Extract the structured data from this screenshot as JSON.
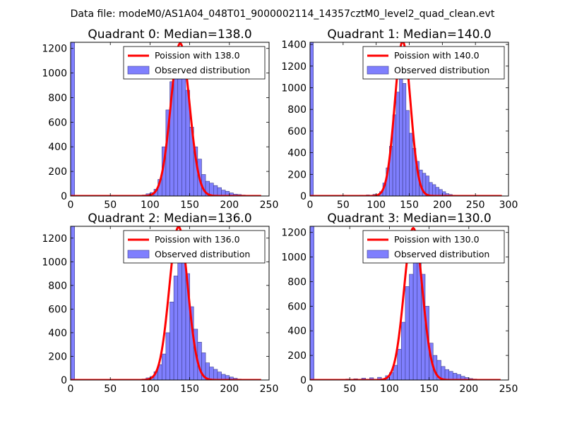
{
  "suptitle": "Data file: modeM0/AS1A04_048T01_9000002114_14357cztM0_level2_quad_clean.evt",
  "colors": {
    "bar": "#7f7ffe",
    "bar_edge": "#3d3d8a",
    "poisson": "#ff0000"
  },
  "chart_data": [
    {
      "type": "bar",
      "title": "Quadrant 0: Median=138.0",
      "median": 138,
      "xlim": [
        0,
        250
      ],
      "ylim": [
        0,
        1250
      ],
      "xticks": [
        0,
        50,
        100,
        150,
        200,
        250
      ],
      "yticks": [
        0,
        200,
        400,
        600,
        800,
        1000,
        1200
      ],
      "bin_width": 5,
      "bins": [
        [
          0,
          1250
        ],
        [
          90,
          8
        ],
        [
          95,
          18
        ],
        [
          100,
          28
        ],
        [
          105,
          55
        ],
        [
          110,
          135
        ],
        [
          115,
          400
        ],
        [
          120,
          700
        ],
        [
          125,
          930
        ],
        [
          130,
          990
        ],
        [
          135,
          1035
        ],
        [
          140,
          1010
        ],
        [
          145,
          860
        ],
        [
          150,
          560
        ],
        [
          155,
          400
        ],
        [
          160,
          300
        ],
        [
          165,
          175
        ],
        [
          170,
          120
        ],
        [
          175,
          105
        ],
        [
          180,
          85
        ],
        [
          185,
          68
        ],
        [
          190,
          48
        ],
        [
          195,
          38
        ],
        [
          200,
          25
        ],
        [
          205,
          15
        ],
        [
          210,
          12
        ],
        [
          215,
          8
        ],
        [
          220,
          5
        ]
      ],
      "legend": [
        "Poission with 138.0",
        "Observed distribution"
      ]
    },
    {
      "type": "bar",
      "title": "Quadrant 1: Median=140.0",
      "median": 140,
      "xlim": [
        0,
        300
      ],
      "ylim": [
        0,
        1420
      ],
      "xticks": [
        0,
        50,
        100,
        150,
        200,
        250,
        300
      ],
      "yticks": [
        0,
        200,
        400,
        600,
        800,
        1000,
        1200,
        1400
      ],
      "bin_width": 5,
      "bins": [
        [
          0,
          1420
        ],
        [
          75,
          8
        ],
        [
          85,
          10
        ],
        [
          95,
          15
        ],
        [
          105,
          40
        ],
        [
          110,
          120
        ],
        [
          115,
          260
        ],
        [
          120,
          460
        ],
        [
          125,
          750
        ],
        [
          130,
          960
        ],
        [
          135,
          1190
        ],
        [
          140,
          1040
        ],
        [
          145,
          790
        ],
        [
          150,
          580
        ],
        [
          155,
          440
        ],
        [
          160,
          320
        ],
        [
          165,
          240
        ],
        [
          170,
          210
        ],
        [
          175,
          185
        ],
        [
          180,
          125
        ],
        [
          185,
          105
        ],
        [
          190,
          80
        ],
        [
          195,
          60
        ],
        [
          200,
          40
        ],
        [
          205,
          22
        ],
        [
          210,
          14
        ],
        [
          215,
          8
        ]
      ],
      "legend": [
        "Poission with 140.0",
        "Observed distribution"
      ]
    },
    {
      "type": "bar",
      "title": "Quadrant 2: Median=136.0",
      "median": 136,
      "xlim": [
        0,
        250
      ],
      "ylim": [
        0,
        1300
      ],
      "xticks": [
        0,
        50,
        100,
        150,
        200,
        250
      ],
      "yticks": [
        0,
        200,
        400,
        600,
        800,
        1000,
        1200
      ],
      "bin_width": 5,
      "bins": [
        [
          0,
          1300
        ],
        [
          90,
          8
        ],
        [
          95,
          18
        ],
        [
          100,
          30
        ],
        [
          105,
          70
        ],
        [
          110,
          130
        ],
        [
          115,
          220
        ],
        [
          120,
          400
        ],
        [
          125,
          660
        ],
        [
          130,
          880
        ],
        [
          135,
          1050
        ],
        [
          140,
          1080
        ],
        [
          145,
          900
        ],
        [
          150,
          620
        ],
        [
          155,
          430
        ],
        [
          160,
          320
        ],
        [
          165,
          230
        ],
        [
          170,
          145
        ],
        [
          175,
          110
        ],
        [
          180,
          90
        ],
        [
          185,
          68
        ],
        [
          190,
          48
        ],
        [
          195,
          38
        ],
        [
          200,
          25
        ],
        [
          205,
          15
        ],
        [
          210,
          8
        ]
      ],
      "legend": [
        "Poission with 136.0",
        "Observed distribution"
      ]
    },
    {
      "type": "bar",
      "title": "Quadrant 3: Median=130.0",
      "median": 130,
      "xlim": [
        0,
        250
      ],
      "ylim": [
        0,
        1250
      ],
      "xticks": [
        0,
        50,
        100,
        150,
        200,
        250
      ],
      "yticks": [
        0,
        200,
        400,
        600,
        800,
        1000,
        1200
      ],
      "bin_width": 5,
      "bins": [
        [
          0,
          1250
        ],
        [
          45,
          8
        ],
        [
          55,
          10
        ],
        [
          65,
          15
        ],
        [
          75,
          18
        ],
        [
          85,
          22
        ],
        [
          95,
          35
        ],
        [
          100,
          60
        ],
        [
          105,
          120
        ],
        [
          110,
          250
        ],
        [
          115,
          470
        ],
        [
          120,
          760
        ],
        [
          125,
          860
        ],
        [
          130,
          1030
        ],
        [
          135,
          990
        ],
        [
          140,
          860
        ],
        [
          145,
          600
        ],
        [
          150,
          300
        ],
        [
          155,
          200
        ],
        [
          160,
          160
        ],
        [
          165,
          110
        ],
        [
          170,
          85
        ],
        [
          175,
          70
        ],
        [
          180,
          55
        ],
        [
          185,
          45
        ],
        [
          190,
          30
        ],
        [
          195,
          20
        ],
        [
          200,
          12
        ],
        [
          205,
          8
        ]
      ],
      "legend": [
        "Poission with 130.0",
        "Observed distribution"
      ]
    }
  ]
}
